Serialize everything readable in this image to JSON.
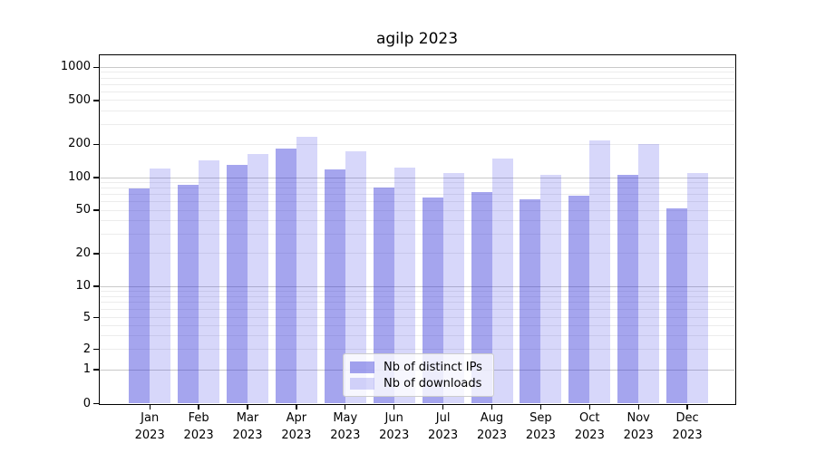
{
  "title": "agilp 2023",
  "chart_data": {
    "type": "bar",
    "title": "agilp 2023",
    "xlabel": "",
    "ylabel": "",
    "yscale": "symlog",
    "ylim": [
      0,
      1300
    ],
    "grid": "horizontal, major and minor",
    "legend_position": "lower center",
    "yticks": [
      1000,
      500,
      200,
      100,
      50,
      20,
      10,
      5,
      2,
      1,
      0
    ],
    "major_grid_values": [
      1,
      10,
      100,
      1000
    ],
    "minor_grid_values": [
      2,
      3,
      4,
      5,
      6,
      7,
      8,
      9,
      20,
      30,
      40,
      50,
      60,
      70,
      80,
      90,
      200,
      300,
      400,
      500,
      600,
      700,
      800,
      900
    ],
    "categories": [
      "Jan 2023",
      "Feb 2023",
      "Mar 2023",
      "Apr 2023",
      "May 2023",
      "Jun 2023",
      "Jul 2023",
      "Aug 2023",
      "Sep 2023",
      "Oct 2023",
      "Nov 2023",
      "Dec 2023"
    ],
    "x_tick_months": [
      "Jan",
      "Feb",
      "Mar",
      "Apr",
      "May",
      "Jun",
      "Jul",
      "Aug",
      "Sep",
      "Oct",
      "Nov",
      "Dec"
    ],
    "x_tick_year": "2023",
    "series": [
      {
        "name": "Nb of distinct IPs",
        "color": "#a8a8ee",
        "values": [
          80,
          86,
          130,
          184,
          119,
          81,
          66,
          74,
          63,
          68,
          106,
          52
        ]
      },
      {
        "name": "Nb of downloads",
        "color": "#d7d7fa",
        "values": [
          120,
          142,
          164,
          233,
          174,
          123,
          110,
          149,
          105,
          218,
          202,
          110
        ]
      }
    ]
  },
  "legend": {
    "items": [
      {
        "label": "Nb of distinct IPs",
        "swatch_color": "#a8a8ee"
      },
      {
        "label": "Nb of downloads",
        "swatch_color": "#d7d7fa"
      }
    ]
  },
  "colors": {
    "background": "#ffffff",
    "bar_distinct_ips_rgba": "rgba(40,40,215,0.42)",
    "bar_downloads_rgba": "rgba(55,55,230,0.20)",
    "major_gridline": "#c9c9c9",
    "minor_gridline": "#ececec",
    "axis": "#000000",
    "legend_border": "#cccccc"
  }
}
